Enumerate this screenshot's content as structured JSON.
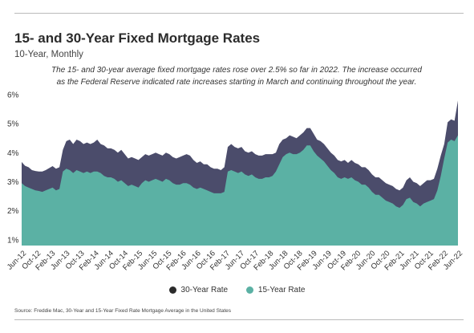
{
  "chart_data": {
    "type": "area",
    "title": "15- and 30-Year Fixed Mortgage Rates",
    "subtitle": "10-Year, Monthly",
    "description": "The 15- and 30-year average fixed mortgage rates rose over 2.5% so far in 2022. The increase occurred as the Federal Reserve indicated rate increases starting in March and continuing throughout the year.",
    "source": "Source:  Freddie Mac, 30-Year  and 15-Year Fixed Rate Mortgage Average in the United States",
    "ylim": [
      0.8,
      6.0
    ],
    "yticks": [
      "6%",
      "5%",
      "4%",
      "3%",
      "2%",
      "1%"
    ],
    "ytick_values": [
      6,
      5,
      4,
      3,
      2,
      1
    ],
    "grid": false,
    "legend_position": "bottom",
    "x_tick_labels": [
      "Jun-12",
      "Oct-12",
      "Feb-13",
      "Jun-13",
      "Oct-13",
      "Feb-14",
      "Jun-14",
      "Oct-14",
      "Feb-15",
      "Jun-15",
      "Oct-15",
      "Feb-16",
      "Jun-16",
      "Oct-16",
      "Feb-17",
      "Jun-17",
      "Oct-17",
      "Feb-18",
      "Jun-18",
      "Oct-18",
      "Feb-19",
      "Jun-19",
      "Oct-19",
      "Feb-20",
      "Jun-20",
      "Oct-20",
      "Feb-21",
      "Jun-21",
      "Oct-21",
      "Feb-22",
      "Jun-22"
    ],
    "series": [
      {
        "name": "30-Year Rate",
        "color": "#4b4c6b",
        "values": [
          3.68,
          3.55,
          3.5,
          3.4,
          3.37,
          3.35,
          3.35,
          3.4,
          3.47,
          3.54,
          3.45,
          3.5,
          4.1,
          4.4,
          4.45,
          4.3,
          4.45,
          4.4,
          4.3,
          4.35,
          4.3,
          4.35,
          4.45,
          4.3,
          4.25,
          4.15,
          4.15,
          4.1,
          4.0,
          4.1,
          3.95,
          3.8,
          3.85,
          3.8,
          3.75,
          3.85,
          3.95,
          3.9,
          3.95,
          4.0,
          3.95,
          3.9,
          4.0,
          3.95,
          3.85,
          3.8,
          3.85,
          3.9,
          3.95,
          3.9,
          3.75,
          3.65,
          3.7,
          3.6,
          3.6,
          3.5,
          3.45,
          3.45,
          3.4,
          3.5,
          4.2,
          4.3,
          4.2,
          4.15,
          4.2,
          4.05,
          4.0,
          4.05,
          3.95,
          3.9,
          3.9,
          3.95,
          3.95,
          3.95,
          4.0,
          4.3,
          4.45,
          4.5,
          4.6,
          4.55,
          4.5,
          4.6,
          4.7,
          4.85,
          4.85,
          4.65,
          4.45,
          4.4,
          4.3,
          4.15,
          4.0,
          3.9,
          3.75,
          3.7,
          3.75,
          3.65,
          3.75,
          3.65,
          3.6,
          3.5,
          3.5,
          3.4,
          3.25,
          3.15,
          3.15,
          3.05,
          2.95,
          2.9,
          2.85,
          2.75,
          2.7,
          2.8,
          3.05,
          3.15,
          3.0,
          2.95,
          2.85,
          2.95,
          3.05,
          3.05,
          3.1,
          3.45,
          3.9,
          4.3,
          5.05,
          5.15,
          5.1,
          5.8
        ]
      },
      {
        "name": "15-Year Rate",
        "color": "#5bb1a4",
        "values": [
          2.95,
          2.85,
          2.8,
          2.75,
          2.7,
          2.68,
          2.65,
          2.7,
          2.75,
          2.8,
          2.7,
          2.75,
          3.35,
          3.45,
          3.4,
          3.3,
          3.4,
          3.35,
          3.3,
          3.35,
          3.3,
          3.35,
          3.35,
          3.3,
          3.2,
          3.15,
          3.15,
          3.1,
          3.0,
          3.05,
          2.95,
          2.85,
          2.9,
          2.85,
          2.8,
          2.95,
          3.05,
          3.0,
          3.05,
          3.1,
          3.05,
          3.0,
          3.1,
          3.05,
          2.95,
          2.9,
          2.9,
          2.95,
          2.95,
          2.9,
          2.8,
          2.75,
          2.8,
          2.75,
          2.7,
          2.65,
          2.6,
          2.6,
          2.6,
          2.65,
          3.35,
          3.4,
          3.35,
          3.3,
          3.35,
          3.25,
          3.2,
          3.25,
          3.15,
          3.1,
          3.1,
          3.15,
          3.15,
          3.2,
          3.35,
          3.6,
          3.85,
          3.95,
          4.0,
          3.95,
          3.95,
          4.0,
          4.1,
          4.25,
          4.25,
          4.05,
          3.9,
          3.8,
          3.7,
          3.55,
          3.4,
          3.3,
          3.15,
          3.1,
          3.15,
          3.1,
          3.15,
          3.05,
          3.0,
          2.9,
          2.9,
          2.8,
          2.65,
          2.55,
          2.55,
          2.45,
          2.35,
          2.3,
          2.25,
          2.15,
          2.1,
          2.2,
          2.4,
          2.45,
          2.3,
          2.25,
          2.15,
          2.25,
          2.3,
          2.35,
          2.4,
          2.7,
          3.2,
          3.8,
          4.35,
          4.45,
          4.4,
          4.6
        ]
      }
    ]
  },
  "legend": {
    "items": [
      {
        "label": "30-Year Rate",
        "color": "#2b2b2b"
      },
      {
        "label": "15-Year Rate",
        "color": "#5bb1a4"
      }
    ]
  }
}
